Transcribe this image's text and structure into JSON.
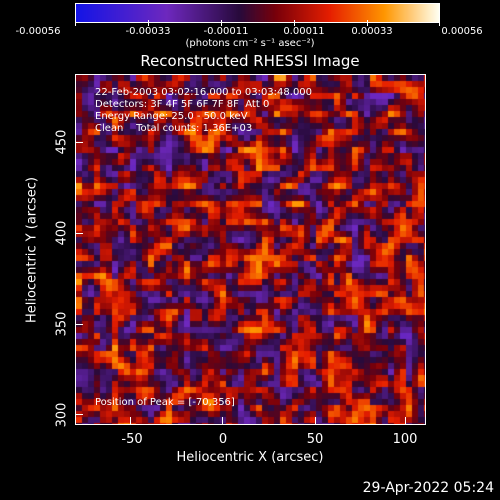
{
  "colorbar": {
    "labels": [
      "-0.00056",
      "-0.00033",
      "-0.00011",
      "0.00011",
      "0.00033",
      "0.00056"
    ],
    "units": "(photons cm⁻² s⁻¹ asec⁻²)"
  },
  "title": "Reconstructed RHESSI Image",
  "info": {
    "line1": "22-Feb-2003 03:02:16.000 to 03:03:48.000",
    "line2": "Detectors: 3F 4F 5F 6F 7F 8F  Att 0",
    "line3": "Energy Range: 25.0 - 50.0 keV",
    "line4": "Clean    Total counts: 1.36E+03",
    "peak": "Position of Peak = [-70,356]"
  },
  "axes": {
    "xlabel": "Heliocentric X (arcsec)",
    "ylabel": "Heliocentric Y (arcsec)",
    "xticks": [
      "-50",
      "0",
      "50",
      "100"
    ],
    "yticks": [
      "300",
      "350",
      "400",
      "450"
    ]
  },
  "footer": "29-Apr-2022 05:24"
}
